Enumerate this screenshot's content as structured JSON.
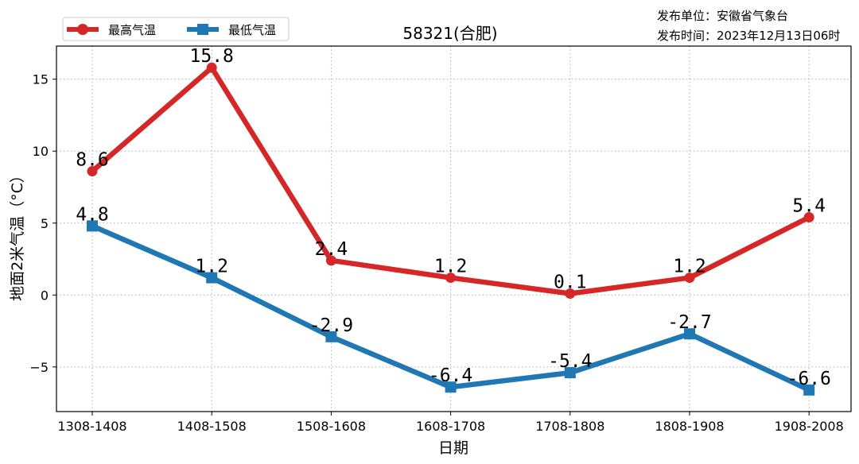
{
  "publisher": {
    "unit": "发布单位：安徽省气象台",
    "time": "发布时间：2023年12月13日06时"
  },
  "chart_data": {
    "type": "line",
    "title": "58321(合肥)",
    "xlabel": "日期",
    "ylabel": "地面2米气温（°C）",
    "categories": [
      "1308-1408",
      "1408-1508",
      "1508-1608",
      "1608-1708",
      "1708-1808",
      "1808-1908",
      "1908-2008"
    ],
    "ylim": [
      -8.1,
      17.3
    ],
    "yticks": [
      -5,
      0,
      5,
      10,
      15
    ],
    "grid": true,
    "legend_position": "top-left",
    "series": [
      {
        "name": "最高气温",
        "color": "#d62728",
        "marker": "circle",
        "values": [
          8.6,
          15.8,
          2.4,
          1.2,
          0.1,
          1.2,
          5.4
        ],
        "labels": [
          "8.6",
          "15.8",
          "2.4",
          "1.2",
          "0.1",
          "1.2",
          "5.4"
        ]
      },
      {
        "name": "最低气温",
        "color": "#1f77b4",
        "marker": "square",
        "values": [
          4.8,
          1.2,
          -2.9,
          -6.4,
          -5.4,
          -2.7,
          -6.6
        ],
        "labels": [
          "4.8",
          "1.2",
          "-2.9",
          "-6.4",
          "-5.4",
          "-2.7",
          "-6.6"
        ]
      }
    ]
  }
}
